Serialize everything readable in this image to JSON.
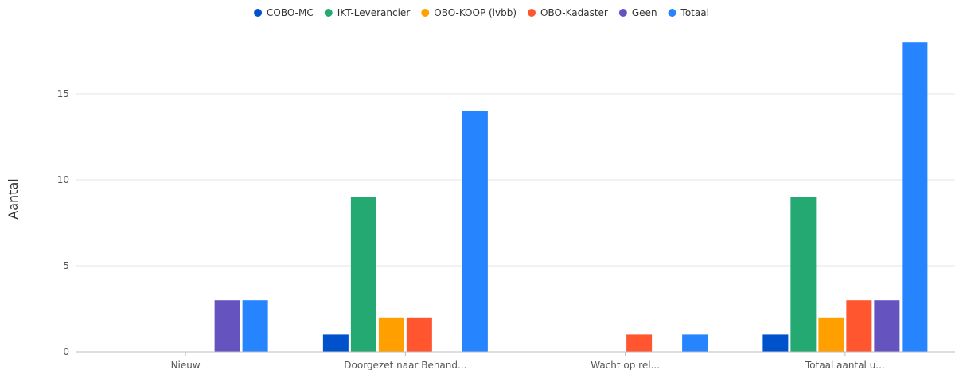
{
  "chart_data": {
    "type": "bar",
    "title": "",
    "xlabel": "",
    "ylabel": "Aantal",
    "ylim": [
      0,
      18
    ],
    "yticks": [
      0,
      5,
      10,
      15
    ],
    "grid": true,
    "legend_position": "top-center",
    "categories": [
      "Nieuw",
      "Doorgezet naar Behand...",
      "Wacht op rel...",
      "Totaal aantal u..."
    ],
    "series": [
      {
        "name": "COBO-MC",
        "color": "#0052cc",
        "values": [
          0,
          1,
          0,
          1
        ]
      },
      {
        "name": "IKT-Leverancier",
        "color": "#23a971",
        "values": [
          0,
          9,
          0,
          9
        ]
      },
      {
        "name": "OBO-KOOP (lvbb)",
        "color": "#ff9f00",
        "values": [
          0,
          2,
          0,
          2
        ]
      },
      {
        "name": "OBO-Kadaster",
        "color": "#ff5630",
        "values": [
          0,
          2,
          1,
          3
        ]
      },
      {
        "name": "Geen",
        "color": "#6554c0",
        "values": [
          3,
          0,
          0,
          3
        ]
      },
      {
        "name": "Totaal",
        "color": "#2684ff",
        "values": [
          3,
          14,
          1,
          18
        ]
      }
    ]
  }
}
